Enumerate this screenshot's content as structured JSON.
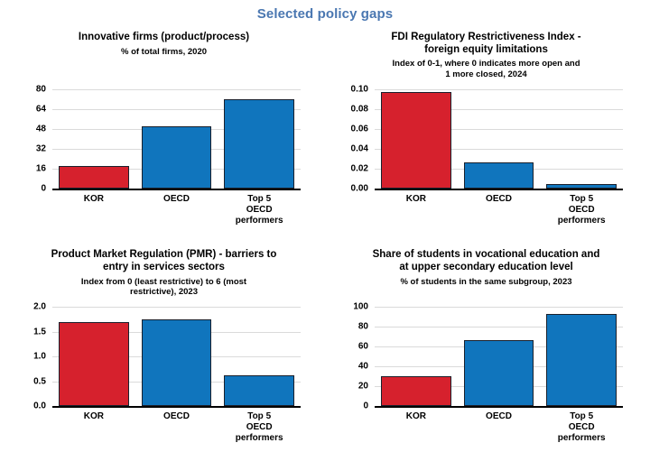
{
  "page_title": "Selected policy gaps",
  "colors": {
    "title_blue": "#4A77B1",
    "kor": "#D6212D",
    "other": "#1075BD",
    "bar_border": "#1A202C",
    "gridline": "#DADADA",
    "axis": "#000000"
  },
  "category_labels": [
    "KOR",
    "OECD",
    "Top 5\nOECD\nperformers"
  ],
  "chart_data": [
    {
      "type": "bar",
      "title": "Innovative firms (product/process)",
      "subtitle": "% of total firms, 2020",
      "categories": [
        "KOR",
        "OECD",
        "Top 5 OECD performers"
      ],
      "values": [
        18,
        50,
        72
      ],
      "ylim": [
        0,
        80
      ],
      "yticks": [
        0,
        16,
        32,
        48,
        64,
        80
      ],
      "decimals": 0,
      "bar_colors": [
        "kor",
        "other",
        "other"
      ],
      "grid": true,
      "legend": "none"
    },
    {
      "type": "bar",
      "title": "FDI Regulatory Restrictiveness Index -\nforeign equity limitations",
      "subtitle": "Index of 0-1, where 0 indicates more open and\n1 more closed, 2024",
      "categories": [
        "KOR",
        "OECD",
        "Top 5 OECD performers"
      ],
      "values": [
        0.097,
        0.026,
        0.005
      ],
      "ylim": [
        0,
        0.1
      ],
      "yticks": [
        0,
        0.02,
        0.04,
        0.06,
        0.08,
        0.1
      ],
      "decimals": 2,
      "bar_colors": [
        "kor",
        "other",
        "other"
      ],
      "grid": true,
      "legend": "none"
    },
    {
      "type": "bar",
      "title": "Product Market Regulation (PMR) - barriers to\nentry in services sectors",
      "subtitle": "Index from 0 (least restrictive) to 6 (most\nrestrictive), 2023",
      "categories": [
        "KOR",
        "OECD",
        "Top 5 OECD performers"
      ],
      "values": [
        1.7,
        1.76,
        0.63
      ],
      "ylim": [
        0,
        2.0
      ],
      "yticks": [
        0,
        0.5,
        1.0,
        1.5,
        2.0
      ],
      "decimals": 1,
      "bar_colors": [
        "kor",
        "other",
        "other"
      ],
      "grid": true,
      "legend": "none"
    },
    {
      "type": "bar",
      "title": "Share of students in vocational education and\nat upper secondary education level",
      "subtitle": "% of students in the same subgroup, 2023",
      "categories": [
        "KOR",
        "OECD",
        "Top 5 OECD performers"
      ],
      "values": [
        30,
        67,
        93
      ],
      "ylim": [
        0,
        100
      ],
      "yticks": [
        0,
        20,
        40,
        60,
        80,
        100
      ],
      "decimals": 0,
      "bar_colors": [
        "kor",
        "other",
        "other"
      ],
      "grid": true,
      "legend": "none"
    }
  ]
}
